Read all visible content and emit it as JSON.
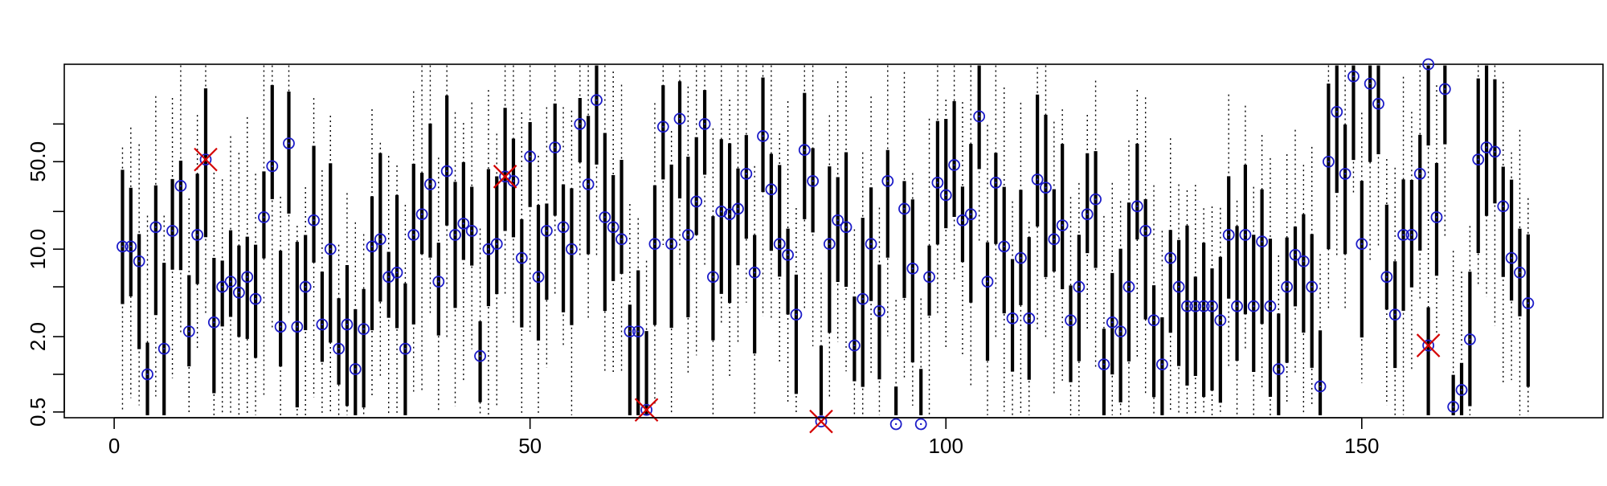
{
  "chart_data": {
    "type": "scatter",
    "y_scale": "log",
    "xlim": [
      -6,
      179
    ],
    "ylim": [
      0.45,
      300
    ],
    "x_ticks": [
      0,
      50,
      100,
      150
    ],
    "x_tick_labels": [
      "0",
      "50",
      "100",
      "150"
    ],
    "y_ticks": [
      0.5,
      2.0,
      10.0,
      50.0
    ],
    "y_tick_labels": [
      "0.5",
      "2.0",
      "10.0",
      "50.0"
    ],
    "grid": false,
    "colors": {
      "interval": "#000000",
      "point": "#1c1cc8",
      "outlier": "#d40000",
      "axis": "#000000"
    },
    "series": [
      {
        "marker": "circle-with-dot",
        "points": [
          [
            1,
            10.5
          ],
          [
            2,
            10.5
          ],
          [
            3,
            8
          ],
          [
            4,
            1
          ],
          [
            5,
            15
          ],
          [
            6,
            1.6
          ],
          [
            7,
            14
          ],
          [
            8,
            32
          ],
          [
            9,
            2.2
          ],
          [
            10,
            13
          ],
          [
            12,
            2.6
          ],
          [
            13,
            5
          ],
          [
            14,
            5.5
          ],
          [
            15,
            4.5
          ],
          [
            16,
            6
          ],
          [
            17,
            4
          ],
          [
            18,
            18
          ],
          [
            19,
            46
          ],
          [
            20,
            2.4
          ],
          [
            21,
            70
          ],
          [
            22,
            2.4
          ],
          [
            23,
            5
          ],
          [
            24,
            17
          ],
          [
            25,
            2.5
          ],
          [
            26,
            10
          ],
          [
            27,
            1.6
          ],
          [
            28,
            2.5
          ],
          [
            29,
            1.1
          ],
          [
            30,
            2.3
          ],
          [
            31,
            10.5
          ],
          [
            32,
            12
          ],
          [
            33,
            6
          ],
          [
            34,
            6.5
          ],
          [
            35,
            1.6
          ],
          [
            36,
            13
          ],
          [
            37,
            19
          ],
          [
            38,
            33
          ],
          [
            39,
            5.5
          ],
          [
            40,
            42
          ],
          [
            41,
            13
          ],
          [
            42,
            16
          ],
          [
            43,
            14
          ],
          [
            44,
            1.4
          ],
          [
            45,
            10
          ],
          [
            46,
            11
          ],
          [
            48,
            35
          ],
          [
            49,
            8.5
          ],
          [
            50,
            55
          ],
          [
            51,
            6
          ],
          [
            52,
            14
          ],
          [
            53,
            65
          ],
          [
            54,
            15
          ],
          [
            55,
            10
          ],
          [
            56,
            100
          ],
          [
            57,
            33
          ],
          [
            58,
            155
          ],
          [
            59,
            18
          ],
          [
            60,
            15
          ],
          [
            61,
            12
          ],
          [
            62,
            2.2
          ],
          [
            63,
            2.2
          ],
          [
            65,
            11
          ],
          [
            66,
            95
          ],
          [
            67,
            11
          ],
          [
            68,
            110
          ],
          [
            69,
            13
          ],
          [
            70,
            24
          ],
          [
            71,
            100
          ],
          [
            72,
            6
          ],
          [
            73,
            20
          ],
          [
            74,
            19
          ],
          [
            75,
            21
          ],
          [
            76,
            40
          ],
          [
            77,
            6.5
          ],
          [
            78,
            80
          ],
          [
            79,
            30
          ],
          [
            80,
            11
          ],
          [
            81,
            9
          ],
          [
            82,
            3
          ],
          [
            83,
            62
          ],
          [
            84,
            35
          ],
          [
            86,
            11
          ],
          [
            87,
            17
          ],
          [
            88,
            15
          ],
          [
            89,
            1.7
          ],
          [
            90,
            4
          ],
          [
            91,
            11
          ],
          [
            92,
            3.2
          ],
          [
            93,
            35
          ],
          [
            94,
            0.4
          ],
          [
            95,
            21
          ],
          [
            96,
            7
          ],
          [
            97,
            0.4
          ],
          [
            98,
            6
          ],
          [
            99,
            34
          ],
          [
            100,
            27
          ],
          [
            101,
            47
          ],
          [
            102,
            17
          ],
          [
            103,
            19
          ],
          [
            104,
            115
          ],
          [
            105,
            5.5
          ],
          [
            106,
            34
          ],
          [
            107,
            10.5
          ],
          [
            108,
            2.8
          ],
          [
            109,
            8.5
          ],
          [
            110,
            2.8
          ],
          [
            111,
            36
          ],
          [
            112,
            31
          ],
          [
            113,
            12
          ],
          [
            114,
            15.5
          ],
          [
            115,
            2.7
          ],
          [
            116,
            5
          ],
          [
            117,
            19
          ],
          [
            118,
            25
          ],
          [
            119,
            1.2
          ],
          [
            120,
            2.6
          ],
          [
            121,
            2.2
          ],
          [
            122,
            5
          ],
          [
            123,
            22
          ],
          [
            124,
            14
          ],
          [
            125,
            2.7
          ],
          [
            126,
            1.2
          ],
          [
            127,
            8.5
          ],
          [
            128,
            5
          ],
          [
            129,
            3.5
          ],
          [
            130,
            3.5
          ],
          [
            131,
            3.5
          ],
          [
            132,
            3.5
          ],
          [
            133,
            2.7
          ],
          [
            134,
            13
          ],
          [
            135,
            3.5
          ],
          [
            136,
            13
          ],
          [
            137,
            3.5
          ],
          [
            138,
            11.5
          ],
          [
            139,
            3.5
          ],
          [
            140,
            1.1
          ],
          [
            141,
            5
          ],
          [
            142,
            9
          ],
          [
            143,
            8
          ],
          [
            144,
            5
          ],
          [
            145,
            0.8
          ],
          [
            146,
            50
          ],
          [
            147,
            125
          ],
          [
            148,
            40
          ],
          [
            149,
            240
          ],
          [
            150,
            11
          ],
          [
            151,
            210
          ],
          [
            152,
            145
          ],
          [
            153,
            6
          ],
          [
            154,
            3
          ],
          [
            155,
            13
          ],
          [
            156,
            13
          ],
          [
            157,
            40
          ],
          [
            158,
            300
          ],
          [
            159,
            18
          ],
          [
            160,
            190
          ],
          [
            161,
            0.55
          ],
          [
            162,
            0.75
          ],
          [
            163,
            1.9
          ],
          [
            164,
            52
          ],
          [
            165,
            65
          ],
          [
            166,
            60
          ],
          [
            167,
            22
          ],
          [
            168,
            8.5
          ],
          [
            169,
            6.5
          ],
          [
            170,
            3.7
          ]
        ]
      },
      {
        "marker": "x-circle",
        "points": [
          [
            11,
            52
          ],
          [
            47,
            38
          ],
          [
            64,
            0.52
          ],
          [
            85,
            0.42
          ],
          [
            158,
            1.7
          ]
        ]
      }
    ]
  }
}
